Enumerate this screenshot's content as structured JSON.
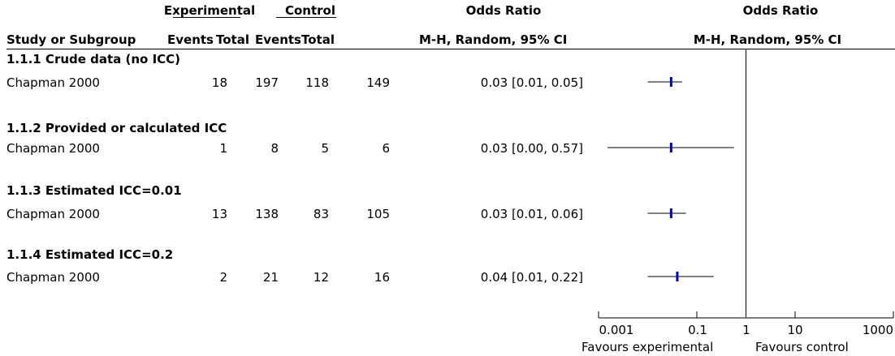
{
  "header": {
    "group1": "Experimental",
    "group2": "Control",
    "effect": "Odds Ratio",
    "plot_title": "Odds Ratio",
    "study_col": "Study or Subgroup",
    "events1": "Events",
    "total1": "Total",
    "events2": "Events",
    "total2": "Total",
    "method": "M-H, Random, 95% CI",
    "plot_method": "M-H, Random, 95% CI"
  },
  "subgroups": [
    {
      "title": "1.1.1 Crude data (no ICC)",
      "study": "Chapman 2000",
      "events_exp": "18",
      "total_exp": "197",
      "events_ctl": "118",
      "total_ctl": "149",
      "ci_text": "0.03 [0.01, 0.05]"
    },
    {
      "title": "1.1.2 Provided or calculated ICC",
      "study": "Chapman 2000",
      "events_exp": "1",
      "total_exp": "8",
      "events_ctl": "5",
      "total_ctl": "6",
      "ci_text": "0.03 [0.00, 0.57]"
    },
    {
      "title": "1.1.3 Estimated ICC=0.01",
      "study": "Chapman 2000",
      "events_exp": "13",
      "total_exp": "138",
      "events_ctl": "83",
      "total_ctl": "105",
      "ci_text": "0.03 [0.01, 0.06]"
    },
    {
      "title": "1.1.4 Estimated ICC=0.2",
      "study": "Chapman 2000",
      "events_exp": "2",
      "total_exp": "21",
      "events_ctl": "12",
      "total_ctl": "16",
      "ci_text": "0.04 [0.01, 0.22]"
    }
  ],
  "axis": {
    "ticks": [
      "0.001",
      "0.1",
      "1",
      "10",
      "1000"
    ],
    "favours_left": "Favours experimental",
    "favours_right": "Favours control"
  },
  "chart_data": {
    "type": "scatter",
    "title": "Odds Ratio",
    "xscale": "log",
    "xlim": [
      0.001,
      1000
    ],
    "xticks": [
      0.001,
      0.1,
      1,
      10,
      1000
    ],
    "reference_line": 1,
    "points": [
      {
        "label": "Chapman 2000",
        "subgroup": "1.1.1 Crude data (no ICC)",
        "or": 0.03,
        "lo": 0.01,
        "hi": 0.05
      },
      {
        "label": "Chapman 2000",
        "subgroup": "1.1.2 Provided or calculated ICC",
        "or": 0.03,
        "lo": 0.0,
        "hi": 0.57
      },
      {
        "label": "Chapman 2000",
        "subgroup": "1.1.3 Estimated ICC=0.01",
        "or": 0.03,
        "lo": 0.01,
        "hi": 0.06
      },
      {
        "label": "Chapman 2000",
        "subgroup": "1.1.4 Estimated ICC=0.2",
        "or": 0.04,
        "lo": 0.01,
        "hi": 0.22
      }
    ],
    "marker_color": "#0000cc"
  }
}
